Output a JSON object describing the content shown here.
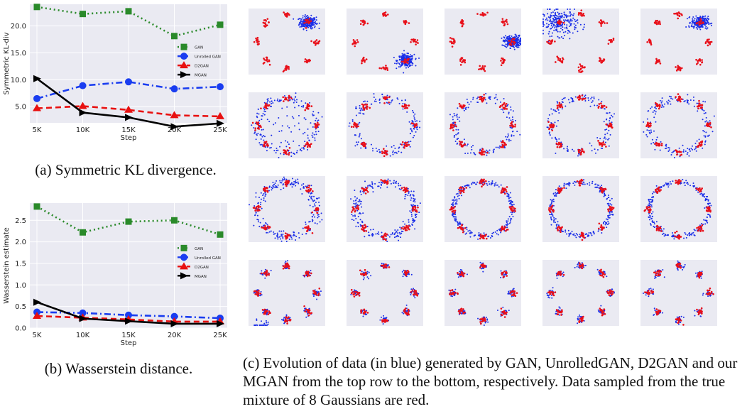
{
  "colors": {
    "gan": "#2a8a2a",
    "unrolled": "#1a3df0",
    "d2gan": "#e81010",
    "mgan": "#000000",
    "plot_bg": "#eaeaf2",
    "grid": "#ffffff",
    "real": "#e8101a",
    "generated": "#1a2ee8"
  },
  "captions": {
    "a": "(a) Symmetric KL divergence.",
    "b": "(b) Wasserstein distance.",
    "c": "(c) Evolution of data (in blue) generated by GAN, UnrolledGAN, D2GAN and our MGAN from the top row to the bottom, respectively. Data sampled from the true mixture of 8 Gaussians are red."
  },
  "chart_data": [
    {
      "type": "line",
      "xlabel": "Step",
      "ylabel": "Symmetric KL-div",
      "categories": [
        "5K",
        "10K",
        "15K",
        "20K",
        "25K"
      ],
      "yticks": [
        "5.0",
        "10.0",
        "15.0",
        "20.0"
      ],
      "ylim": [
        2.0,
        24.0
      ],
      "grid": true,
      "legend": "right",
      "series": [
        {
          "name": "GAN",
          "values": [
            23.5,
            22.2,
            22.7,
            18.1,
            20.2
          ]
        },
        {
          "name": "Unrolled GAN",
          "values": [
            6.5,
            8.9,
            9.6,
            8.3,
            8.7
          ]
        },
        {
          "name": "D2GAN",
          "values": [
            4.7,
            5.1,
            4.4,
            3.4,
            3.2
          ]
        },
        {
          "name": "MGAN",
          "values": [
            10.2,
            3.9,
            3.0,
            1.3,
            1.9
          ]
        }
      ]
    },
    {
      "type": "line",
      "xlabel": "Step",
      "ylabel": "Wasserstein estimate",
      "categories": [
        "5K",
        "10K",
        "15K",
        "20K",
        "25K"
      ],
      "yticks": [
        "0.0",
        "0.5",
        "1.0",
        "1.5",
        "2.0",
        "2.5"
      ],
      "ylim": [
        0.0,
        2.9
      ],
      "grid": true,
      "legend": "right",
      "series": [
        {
          "name": "GAN",
          "values": [
            2.82,
            2.22,
            2.47,
            2.5,
            2.17
          ]
        },
        {
          "name": "Unrolled GAN",
          "values": [
            0.37,
            0.35,
            0.3,
            0.27,
            0.23
          ]
        },
        {
          "name": "D2GAN",
          "values": [
            0.28,
            0.24,
            0.2,
            0.15,
            0.15
          ]
        },
        {
          "name": "MGAN",
          "values": [
            0.6,
            0.22,
            0.16,
            0.1,
            0.1
          ]
        }
      ]
    }
  ],
  "scatter_grid": {
    "rows": [
      "GAN",
      "UnrolledGAN",
      "D2GAN",
      "MGAN"
    ],
    "columns": 5
  }
}
